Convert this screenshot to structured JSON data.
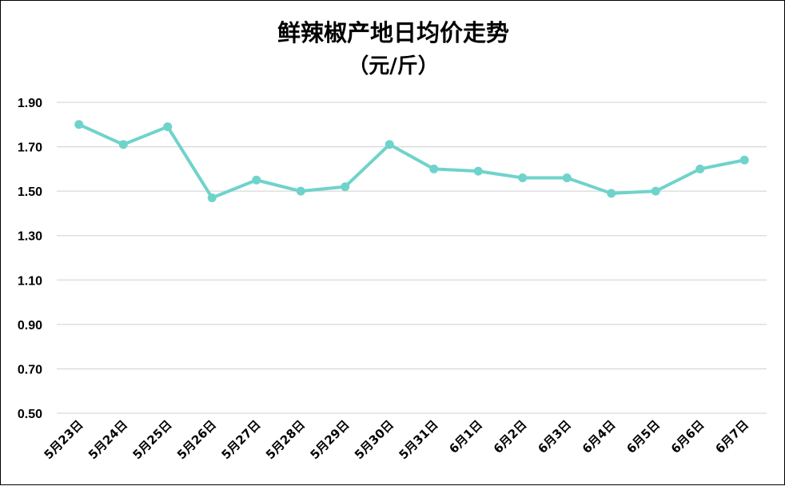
{
  "chart_data": {
    "type": "line",
    "title": "鲜辣椒产地日均价走势",
    "subtitle": "（元/斤）",
    "categories": [
      "5月23日",
      "5月24日",
      "5月25日",
      "5月26日",
      "5月27日",
      "5月28日",
      "5月29日",
      "5月30日",
      "5月31日",
      "6月1日",
      "6月2日",
      "6月3日",
      "6月4日",
      "6月5日",
      "6月6日",
      "6月7日"
    ],
    "series": [
      {
        "values": [
          1.8,
          1.71,
          1.79,
          1.47,
          1.55,
          1.5,
          1.52,
          1.71,
          1.6,
          1.59,
          1.56,
          1.56,
          1.49,
          1.5,
          1.6,
          1.64
        ],
        "color": "#6fd3cb"
      }
    ],
    "yticks": [
      "1.90",
      "1.70",
      "1.50",
      "1.30",
      "1.10",
      "0.90",
      "0.70",
      "0.50"
    ],
    "ylim": [
      0.5,
      1.9
    ],
    "grid": true,
    "legend": "none",
    "xlabel": "",
    "ylabel": ""
  }
}
